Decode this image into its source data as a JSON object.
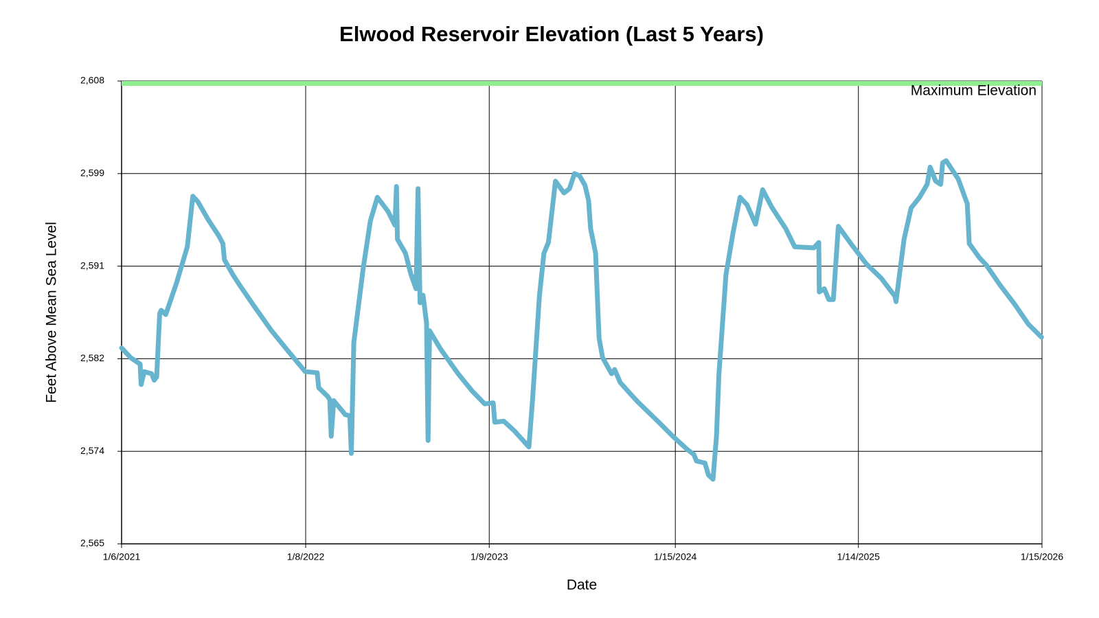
{
  "chart_data": {
    "type": "line",
    "title": "Elwood Reservoir Elevation (Last 5 Years)",
    "x_label": "Date",
    "y_label": "Feet Above Mean Sea Level",
    "color": "#67b4cf",
    "grid": true,
    "xlim": [
      "2021-01-06",
      "2026-01-15"
    ],
    "xticks": [
      {
        "value": "2021-01-06",
        "label": "1/6/2021"
      },
      {
        "value": "2022-01-08",
        "label": "1/8/2022"
      },
      {
        "value": "2023-01-09",
        "label": "1/9/2023"
      },
      {
        "value": "2024-01-15",
        "label": "1/15/2024"
      },
      {
        "value": "2025-01-14",
        "label": "1/14/2025"
      },
      {
        "value": "2026-01-15",
        "label": "1/15/2026"
      }
    ],
    "ylim": [
      2565,
      2608
    ],
    "yticks": [
      {
        "value": 2565,
        "label": "2,565"
      },
      {
        "value": 2573.6,
        "label": "2,574"
      },
      {
        "value": 2582.2,
        "label": "2,582"
      },
      {
        "value": 2590.8,
        "label": "2,591"
      },
      {
        "value": 2599.4,
        "label": "2,599"
      },
      {
        "value": 2608,
        "label": "2,608"
      }
    ],
    "reference_line": {
      "value": 2608,
      "label": "Maximum Elevation",
      "color": "#90ee90",
      "text_color": "#1e7b1e"
    },
    "x": [
      "2021-01-06",
      "2021-01-24",
      "2021-02-12",
      "2021-02-14",
      "2021-02-20",
      "2021-03-07",
      "2021-03-12",
      "2021-03-17",
      "2021-03-23",
      "2021-03-26",
      "2021-04-04",
      "2021-04-26",
      "2021-05-17",
      "2021-05-28",
      "2021-06-07",
      "2021-06-28",
      "2021-07-19",
      "2021-07-27",
      "2021-07-30",
      "2021-08-16",
      "2021-08-30",
      "2021-09-27",
      "2021-11-01",
      "2021-12-06",
      "2022-01-07",
      "2022-01-31",
      "2022-02-03",
      "2022-02-21",
      "2022-02-25",
      "2022-02-28",
      "2022-03-05",
      "2022-03-28",
      "2022-04-06",
      "2022-04-09",
      "2022-04-14",
      "2022-05-03",
      "2022-05-17",
      "2022-05-31",
      "2022-06-21",
      "2022-07-05",
      "2022-07-08",
      "2022-07-10",
      "2022-07-26",
      "2022-08-06",
      "2022-08-16",
      "2022-08-20",
      "2022-08-24",
      "2022-08-30",
      "2022-09-06",
      "2022-09-09",
      "2022-09-12",
      "2022-10-04",
      "2022-11-08",
      "2022-12-06",
      "2022-12-31",
      "2023-01-17",
      "2023-01-20",
      "2023-02-07",
      "2023-02-28",
      "2023-03-29",
      "2023-04-05",
      "2023-04-19",
      "2023-04-28",
      "2023-05-07",
      "2023-05-21",
      "2023-06-07",
      "2023-06-18",
      "2023-06-28",
      "2023-07-08",
      "2023-07-19",
      "2023-07-26",
      "2023-07-30",
      "2023-08-09",
      "2023-08-16",
      "2023-08-23",
      "2023-09-10",
      "2023-09-16",
      "2023-09-27",
      "2023-10-18",
      "2023-11-01",
      "2023-12-13",
      "2024-01-10",
      "2024-02-07",
      "2024-02-21",
      "2024-02-26",
      "2024-03-14",
      "2024-03-21",
      "2024-03-30",
      "2024-04-06",
      "2024-04-11",
      "2024-04-25",
      "2024-05-09",
      "2024-05-23",
      "2024-06-06",
      "2024-06-23",
      "2024-07-07",
      "2024-07-25",
      "2024-08-08",
      "2024-08-22",
      "2024-09-09",
      "2024-10-17",
      "2024-10-27",
      "2024-10-28",
      "2024-11-07",
      "2024-11-16",
      "2024-11-25",
      "2024-12-05",
      "2025-01-02",
      "2025-01-30",
      "2025-02-28",
      "2025-03-28",
      "2025-03-30",
      "2025-04-15",
      "2025-04-29",
      "2025-05-16",
      "2025-05-31",
      "2025-06-06",
      "2025-06-17",
      "2025-06-27",
      "2025-07-01",
      "2025-07-08",
      "2025-08-01",
      "2025-08-19",
      "2025-08-23",
      "2025-09-12",
      "2025-09-26",
      "2025-10-24",
      "2025-11-21",
      "2025-12-19",
      "2026-01-14"
    ],
    "values": [
      2583.2,
      2582.3,
      2581.7,
      2579.8,
      2581,
      2580.8,
      2580.2,
      2580.5,
      2586.4,
      2586.7,
      2586.3,
      2589.3,
      2592.6,
      2597.3,
      2596.8,
      2595.1,
      2593.6,
      2592.9,
      2591.4,
      2590,
      2589,
      2587.1,
      2584.8,
      2582.8,
      2581,
      2580.9,
      2579.5,
      2578.7,
      2578.4,
      2575,
      2578.3,
      2577,
      2576.9,
      2573.4,
      2583.7,
      2590.7,
      2595,
      2597.2,
      2595.9,
      2594.6,
      2598.2,
      2593.3,
      2592,
      2590,
      2588.7,
      2598,
      2587.4,
      2588.1,
      2585.5,
      2574.6,
      2584.8,
      2583.1,
      2580.8,
      2579.2,
      2578,
      2578.1,
      2576.3,
      2576.4,
      2575.5,
      2574,
      2578.2,
      2588,
      2592,
      2593,
      2598.7,
      2597.6,
      2598,
      2599.4,
      2599.2,
      2598.3,
      2596.9,
      2594.3,
      2592,
      2584.1,
      2582.3,
      2580.8,
      2581.2,
      2580,
      2578.9,
      2578.2,
      2576.3,
      2575,
      2573.8,
      2573.3,
      2572.7,
      2572.5,
      2571.4,
      2571,
      2575,
      2580.8,
      2590,
      2593.9,
      2597.2,
      2596.5,
      2594.7,
      2597.9,
      2596.3,
      2595.3,
      2594.3,
      2592.6,
      2592.5,
      2593,
      2588.4,
      2588.7,
      2587.7,
      2587.7,
      2594.5,
      2592.7,
      2591,
      2589.7,
      2588,
      2587.5,
      2593.3,
      2596.2,
      2597.2,
      2598.4,
      2600,
      2598.7,
      2598.4,
      2600.4,
      2600.6,
      2598.9,
      2596.6,
      2592.9,
      2591.6,
      2590.9,
      2589,
      2587.3,
      2585.4,
      2584.2
    ]
  }
}
